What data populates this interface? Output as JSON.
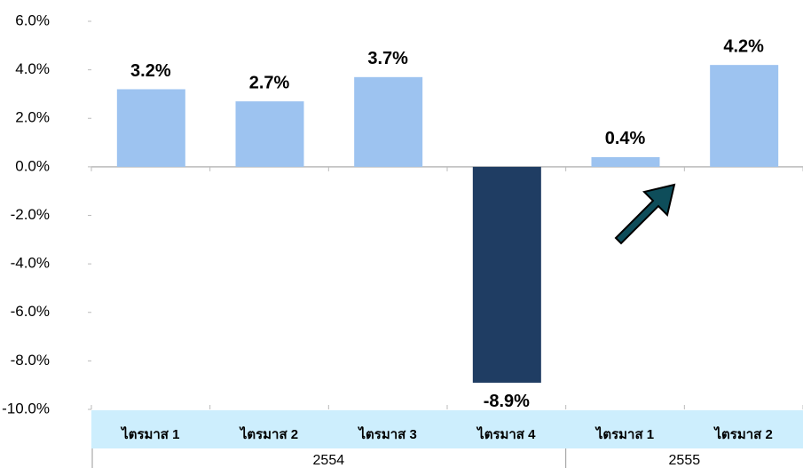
{
  "chart_data": {
    "type": "bar",
    "categories": [
      "ไตรมาส 1",
      "ไตรมาส 2",
      "ไตรมาส 3",
      "ไตรมาส 4",
      "ไตรมาส 1",
      "ไตรมาส 2"
    ],
    "values": [
      3.2,
      2.7,
      3.7,
      -8.9,
      0.4,
      4.2
    ],
    "value_labels": [
      "3.2%",
      "2.7%",
      "3.7%",
      "-8.9%",
      "0.4%",
      "4.2%"
    ],
    "colors": [
      "#9dc3f0",
      "#9dc3f0",
      "#9dc3f0",
      "#1f3d63",
      "#9dc3f0",
      "#9dc3f0"
    ],
    "groups": [
      {
        "label": "2554",
        "span": 4
      },
      {
        "label": "2555",
        "span": 2
      }
    ],
    "ylim": [
      -10,
      6
    ],
    "yticks": [
      {
        "value": -10,
        "label": "-10.0%"
      },
      {
        "value": -8,
        "label": "-8.0%"
      },
      {
        "value": -6,
        "label": "-6.0%"
      },
      {
        "value": -4,
        "label": "-4.0%"
      },
      {
        "value": -2,
        "label": "-2.0%"
      },
      {
        "value": 0,
        "label": "0.0%"
      },
      {
        "value": 2,
        "label": "2.0%"
      },
      {
        "value": 4,
        "label": "4.0%"
      },
      {
        "value": 6,
        "label": "6.0%"
      }
    ]
  }
}
